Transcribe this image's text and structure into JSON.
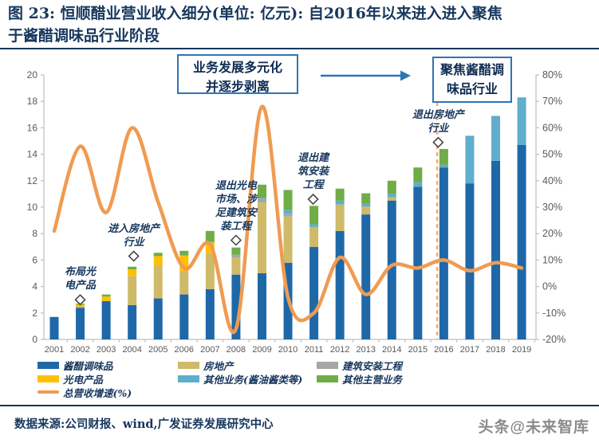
{
  "title": "图 23: 恒顺醋业营业收入细分(单位: 亿元): 自2016年以来进入进入聚焦\n于酱醋调味品行业阶段",
  "stages": {
    "stage1": "业务发展多元化\n并逐步剥离",
    "stage2": "聚焦酱醋调\n味品行业"
  },
  "events": [
    {
      "label": "布局光\n电产品",
      "year": "2002",
      "value": 3.0,
      "dx": 0
    },
    {
      "label": "进入房地产\n行业",
      "year": "2004",
      "value": 6.3,
      "dx": 2
    },
    {
      "label": "退出光电\n市场、涉\n足建筑安\n装工程",
      "year": "2008",
      "value": 7.5,
      "dx": 0
    },
    {
      "label": "退出建\n筑安装\n工程",
      "year": "2011",
      "value": 10.6,
      "dx": -1
    },
    {
      "label": "退出房地产\n行业",
      "year": "2016",
      "value": 14.9,
      "dx": -7
    }
  ],
  "legend": {
    "items": [
      {
        "label": "酱醋调味品",
        "color": "#1F68A8",
        "shape": "rect",
        "col": 0,
        "row": 0
      },
      {
        "label": "房地产",
        "color": "#CEBA69",
        "shape": "rect",
        "col": 1,
        "row": 0
      },
      {
        "label": "建筑安装工程",
        "color": "#A6A6A6",
        "shape": "rect",
        "col": 2,
        "row": 0
      },
      {
        "label": "光电产品",
        "color": "#FFC000",
        "shape": "rect",
        "col": 0,
        "row": 1
      },
      {
        "label": "其他业务(酱油酱类等)",
        "color": "#5FAECB",
        "shape": "rect",
        "col": 1,
        "row": 1
      },
      {
        "label": "其他主营业务",
        "color": "#6FAD47",
        "shape": "rect",
        "col": 2,
        "row": 1
      },
      {
        "label": "总营收增速(%)",
        "color": "#F09B51",
        "shape": "line",
        "col": 0,
        "row": 2
      }
    ]
  },
  "chart_data": {
    "type": "bar+line",
    "title": "恒顺醋业营业收入细分(亿元)与总营收增速(%)",
    "categories": [
      "2001",
      "2002",
      "2003",
      "2004",
      "2005",
      "2006",
      "2007",
      "2008",
      "2009",
      "2010",
      "2011",
      "2012",
      "2013",
      "2014",
      "2015",
      "2016",
      "2017",
      "2018",
      "2019"
    ],
    "series": [
      {
        "name": "酱醋调味品",
        "type": "bar",
        "color": "#1F68A8",
        "values": [
          1.7,
          2.4,
          2.9,
          2.6,
          3.1,
          3.4,
          3.8,
          4.9,
          5.0,
          5.8,
          7.0,
          8.2,
          9.45,
          10.5,
          11.55,
          13.0,
          11.8,
          13.5,
          14.7
        ]
      },
      {
        "name": "房地产",
        "type": "bar",
        "color": "#CEBA69",
        "values": [
          0,
          0.1,
          0,
          2.2,
          2.5,
          1.75,
          2.7,
          1.3,
          5.35,
          3.5,
          1.5,
          2.0,
          0.6,
          0.25,
          0,
          0,
          0,
          0,
          0
        ]
      },
      {
        "name": "光电产品",
        "type": "bar",
        "color": "#FFC000",
        "values": [
          0,
          0.15,
          0.35,
          0.5,
          0.7,
          1.2,
          0.85,
          0,
          0,
          0,
          0,
          0,
          0,
          0,
          0,
          0,
          0,
          0,
          0
        ]
      },
      {
        "name": "建筑安装工程",
        "type": "bar",
        "color": "#A6A6A6",
        "values": [
          0,
          0,
          0,
          0,
          0,
          0,
          0,
          0.2,
          0.3,
          0.2,
          0,
          0,
          0,
          0,
          0,
          0,
          0,
          0,
          0
        ]
      },
      {
        "name": "其他业务(酱油酱类等)",
        "type": "bar",
        "color": "#5FAECB",
        "values": [
          0,
          0,
          0,
          0,
          0,
          0,
          0.05,
          0,
          0.05,
          0.3,
          0.2,
          0.3,
          0.25,
          0.25,
          0.35,
          0.2,
          3.6,
          3.4,
          3.6
        ]
      },
      {
        "name": "其他主营业务",
        "type": "bar",
        "color": "#6FAD47",
        "values": [
          0,
          0.05,
          0.15,
          0.2,
          0.25,
          0.35,
          0.8,
          0.55,
          1.0,
          1.5,
          1.4,
          0.9,
          0.75,
          1.0,
          1.1,
          1.2,
          0,
          0,
          0
        ]
      },
      {
        "name": "总营收增速(%)",
        "type": "line",
        "color": "#F09B51",
        "values": [
          21,
          53,
          28,
          60,
          32,
          7,
          16,
          -16,
          68,
          -4,
          -10,
          11,
          -3,
          8,
          7,
          10,
          6,
          9,
          7
        ]
      }
    ],
    "ylim_left": [
      0,
      20
    ],
    "yticks_left": [
      "0",
      "2",
      "4",
      "6",
      "8",
      "10",
      "12",
      "14",
      "16",
      "18",
      "20"
    ],
    "ylim_right_pct": [
      -20,
      80
    ],
    "yticks_right": [
      "-20%",
      "-10%",
      "0%",
      "10%",
      "20%",
      "30%",
      "40%",
      "50%",
      "60%",
      "70%",
      "80%"
    ],
    "divider_between": [
      "2015",
      "2016"
    ],
    "grid": "off",
    "legend_position": "bottom"
  },
  "footer": {
    "source": "数据来源:公司财报、wind,广发证券发展研究中心",
    "watermark": "头条@未来智库"
  }
}
